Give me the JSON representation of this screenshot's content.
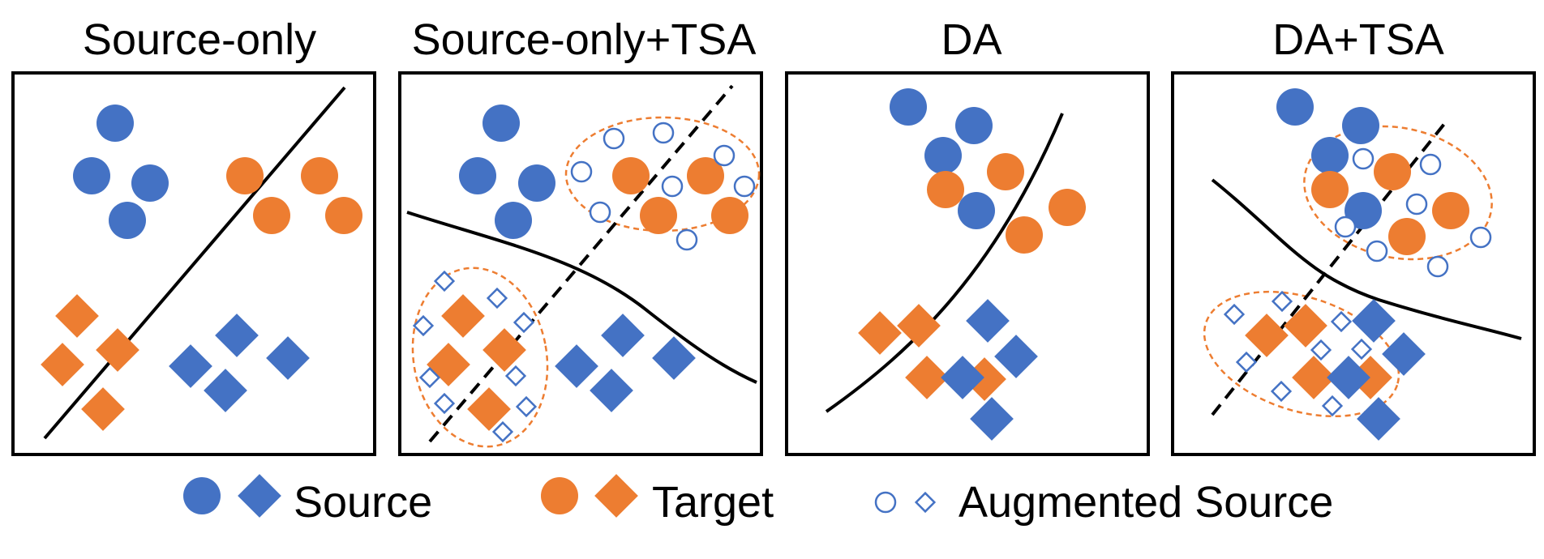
{
  "panels": [
    {
      "title": "Source-only"
    },
    {
      "title": "Source-only+TSA"
    },
    {
      "title": "DA"
    },
    {
      "title": "DA+TSA"
    }
  ],
  "legend": {
    "source": "Source",
    "target": "Target",
    "augmented": "Augmented Source"
  },
  "colors": {
    "source": "#4472C4",
    "target": "#ED7D31",
    "frame": "#000000"
  }
}
